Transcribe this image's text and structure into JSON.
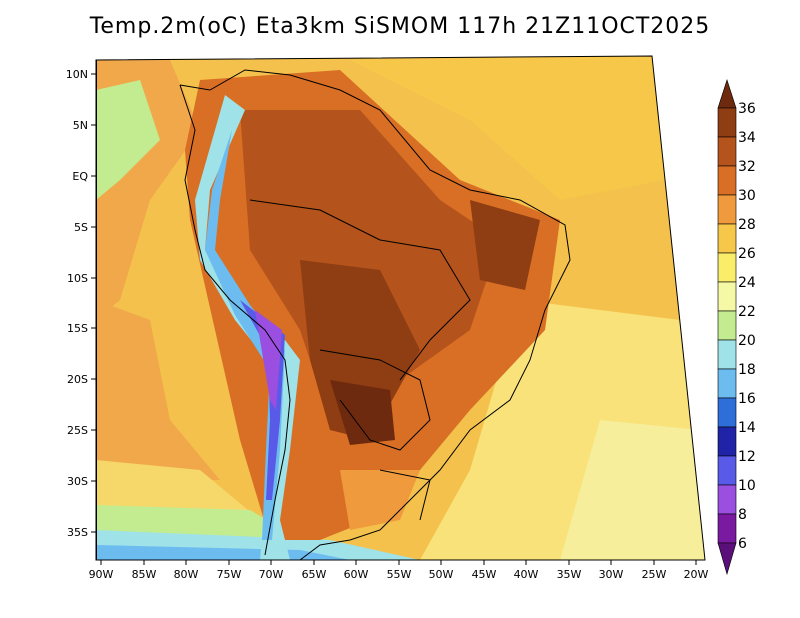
{
  "title": "Temp.2m(oC) Eta3km SiSMOM 117h 21Z11OCT2025",
  "map": {
    "lat_ticks": [
      "10N",
      "5N",
      "EQ",
      "5S",
      "10S",
      "15S",
      "20S",
      "25S",
      "30S",
      "35S"
    ],
    "lon_ticks": [
      "90W",
      "85W",
      "80W",
      "75W",
      "70W",
      "65W",
      "60W",
      "55W",
      "50W",
      "45W",
      "40W",
      "35W",
      "30W",
      "25W",
      "20W"
    ]
  },
  "colorbar": {
    "levels": [
      "36",
      "34",
      "32",
      "30",
      "28",
      "26",
      "24",
      "22",
      "20",
      "18",
      "16",
      "14",
      "12",
      "10",
      "8",
      "6"
    ],
    "colors": [
      "#6e2a0e",
      "#8f3d12",
      "#b4531b",
      "#d86f25",
      "#f09a3e",
      "#f6c749",
      "#f9ed6a",
      "#f5f9a6",
      "#c3ec91",
      "#9fe2e8",
      "#6cbcf0",
      "#2e6ed8",
      "#1f23a8",
      "#5a5ae8",
      "#9b4fe0",
      "#7a1aa0"
    ]
  }
}
